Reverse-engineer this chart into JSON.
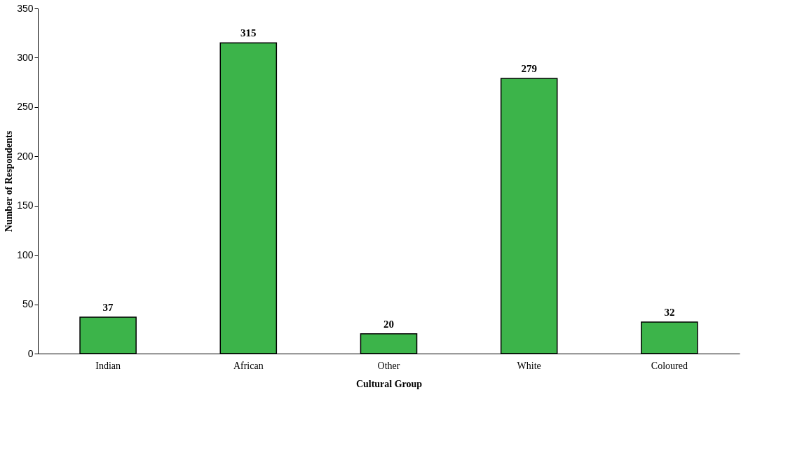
{
  "chart_data": {
    "type": "bar",
    "xlabel": "Cultural Group",
    "ylabel": "Number of Respondents",
    "categories": [
      "Indian",
      "African",
      "Other",
      "White",
      "Coloured"
    ],
    "values": [
      37,
      315,
      20,
      279,
      32
    ],
    "color": "#3cb44a",
    "ylim": [
      0,
      350
    ],
    "yticks": [
      0,
      50,
      100,
      150,
      200,
      250,
      300,
      350
    ],
    "data_labels": true,
    "grid": false
  }
}
